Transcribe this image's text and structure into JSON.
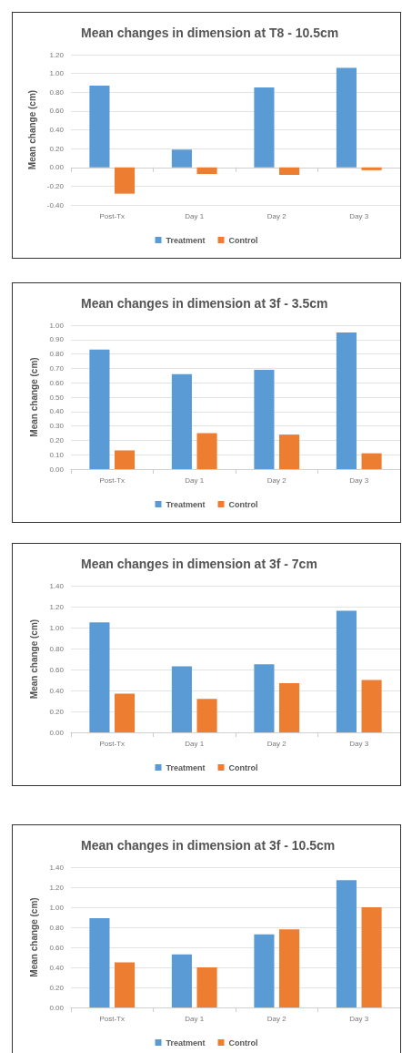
{
  "chart_data": [
    {
      "type": "bar",
      "title": "Mean changes in dimension at T8 - 10.5cm",
      "ylabel": "Mean change (cm)",
      "categories": [
        "Post-Tx",
        "Day 1",
        "Day 2",
        "Day 3"
      ],
      "series": [
        {
          "name": "Treatment",
          "color": "#5b9bd5",
          "values": [
            0.87,
            0.19,
            0.85,
            1.06
          ]
        },
        {
          "name": "Control",
          "color": "#ed7d31",
          "values": [
            -0.28,
            -0.07,
            -0.08,
            -0.03
          ]
        }
      ],
      "ylim": [
        -0.4,
        1.2
      ],
      "yticks": [
        {
          "value": -0.4,
          "label": "-0.40"
        },
        {
          "value": -0.2,
          "label": "-0.20"
        },
        {
          "value": 0,
          "label": "0.00"
        },
        {
          "value": 0.2,
          "label": "0.20"
        },
        {
          "value": 0.4,
          "label": "0.40"
        },
        {
          "value": 0.6,
          "label": "0.60"
        },
        {
          "value": 0.8,
          "label": "0.80"
        },
        {
          "value": 1,
          "label": "1.00"
        },
        {
          "value": 1.2,
          "label": "1.20"
        }
      ],
      "grid": "y",
      "legend": "bottom"
    },
    {
      "type": "bar",
      "title": "Mean changes in dimension at 3f - 3.5cm",
      "ylabel": "Mean change (cm)",
      "categories": [
        "Post-Tx",
        "Day 1",
        "Day 2",
        "Day 3"
      ],
      "series": [
        {
          "name": "Treatment",
          "color": "#5b9bd5",
          "values": [
            0.83,
            0.66,
            0.69,
            0.95
          ]
        },
        {
          "name": "Control",
          "color": "#ed7d31",
          "values": [
            0.13,
            0.25,
            0.24,
            0.11
          ]
        }
      ],
      "ylim": [
        0,
        1
      ],
      "yticks": [
        {
          "value": 0,
          "label": "0.00"
        },
        {
          "value": 0.1,
          "label": "0.10"
        },
        {
          "value": 0.2,
          "label": "0.20"
        },
        {
          "value": 0.3,
          "label": "0.30"
        },
        {
          "value": 0.4,
          "label": "0.40"
        },
        {
          "value": 0.5,
          "label": "0.50"
        },
        {
          "value": 0.6,
          "label": "0.60"
        },
        {
          "value": 0.7,
          "label": "0.70"
        },
        {
          "value": 0.8,
          "label": "0.80"
        },
        {
          "value": 0.9,
          "label": "0.90"
        },
        {
          "value": 1,
          "label": "1.00"
        }
      ],
      "grid": "y",
      "legend": "bottom"
    },
    {
      "type": "bar",
      "title": "Mean changes in dimension at 3f - 7cm",
      "ylabel": "Mean change (cm)",
      "categories": [
        "Post-Tx",
        "Day 1",
        "Day 2",
        "Day 3"
      ],
      "series": [
        {
          "name": "Treatment",
          "color": "#5b9bd5",
          "values": [
            1.05,
            0.63,
            0.65,
            1.16
          ]
        },
        {
          "name": "Control",
          "color": "#ed7d31",
          "values": [
            0.37,
            0.32,
            0.47,
            0.5
          ]
        }
      ],
      "ylim": [
        0,
        1.4
      ],
      "yticks": [
        {
          "value": 0,
          "label": "0.00"
        },
        {
          "value": 0.2,
          "label": "0.20"
        },
        {
          "value": 0.4,
          "label": "0.40"
        },
        {
          "value": 0.6,
          "label": "0.60"
        },
        {
          "value": 0.8,
          "label": "0.80"
        },
        {
          "value": 1,
          "label": "1.00"
        },
        {
          "value": 1.2,
          "label": "1.20"
        },
        {
          "value": 1.4,
          "label": "1.40"
        }
      ],
      "grid": "y",
      "legend": "bottom"
    },
    {
      "type": "bar",
      "title": "Mean changes in dimension at 3f - 10.5cm",
      "ylabel": "Mean change (cm)",
      "categories": [
        "Post-Tx",
        "Day 1",
        "Day 2",
        "Day 3"
      ],
      "series": [
        {
          "name": "Treatment",
          "color": "#5b9bd5",
          "values": [
            0.89,
            0.53,
            0.73,
            1.27
          ]
        },
        {
          "name": "Control",
          "color": "#ed7d31",
          "values": [
            0.45,
            0.4,
            0.78,
            1.0
          ]
        }
      ],
      "ylim": [
        0,
        1.4
      ],
      "yticks": [
        {
          "value": 0,
          "label": "0.00"
        },
        {
          "value": 0.2,
          "label": "0.20"
        },
        {
          "value": 0.4,
          "label": "0.40"
        },
        {
          "value": 0.6,
          "label": "0.60"
        },
        {
          "value": 0.8,
          "label": "0.80"
        },
        {
          "value": 1,
          "label": "1.00"
        },
        {
          "value": 1.2,
          "label": "1.20"
        },
        {
          "value": 1.4,
          "label": "1.40"
        }
      ],
      "grid": "y",
      "legend": "bottom"
    }
  ]
}
